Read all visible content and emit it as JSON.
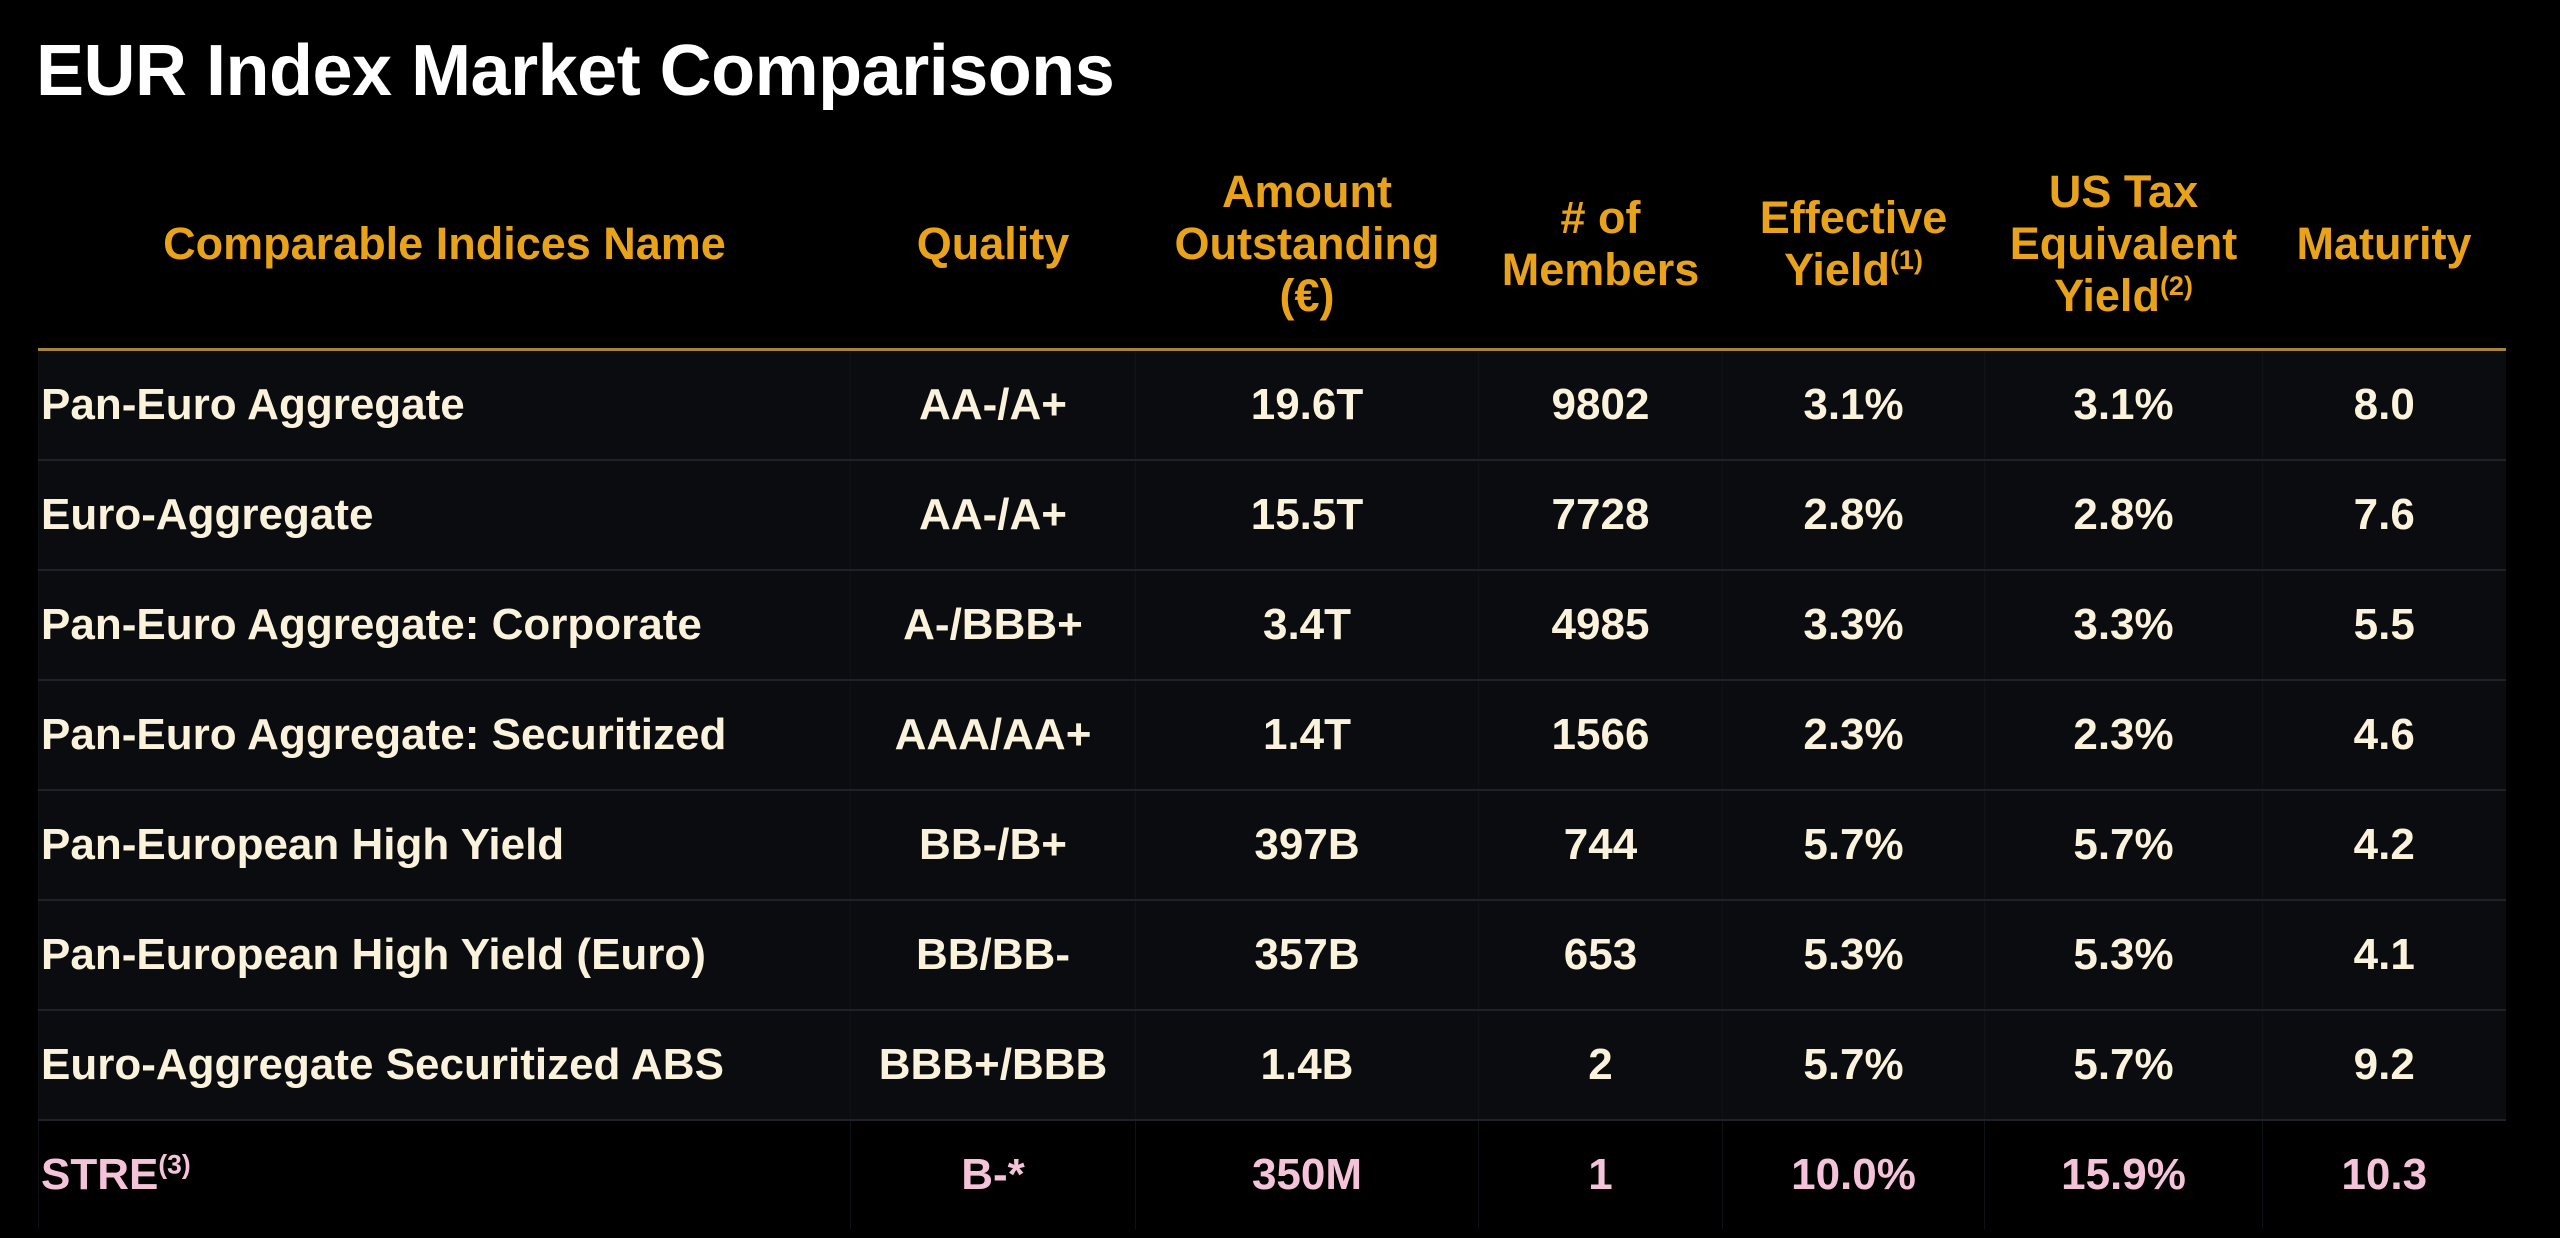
{
  "title": "EUR Index Market Comparisons",
  "colors": {
    "header": "#e9a31b",
    "body_text": "#fbf2dc",
    "highlight_text": "#f5c3d9",
    "background": "#000000"
  },
  "columns": [
    {
      "label": "Comparable Indices Name",
      "sup": ""
    },
    {
      "label": "Quality",
      "sup": ""
    },
    {
      "label": "Amount Outstanding (€)",
      "sup": ""
    },
    {
      "label": "# of Members",
      "sup": ""
    },
    {
      "label": "Effective Yield",
      "sup": "(1)"
    },
    {
      "label": "US Tax Equivalent Yield",
      "sup": "(2)"
    },
    {
      "label": "Maturity",
      "sup": ""
    }
  ],
  "rows": [
    {
      "name": "Pan-Euro Aggregate",
      "sup": "",
      "quality": "AA-/A+",
      "amount": "19.6T",
      "members": "9802",
      "effective_yield": "3.1%",
      "tax_equiv_yield": "3.1%",
      "maturity": "8.0"
    },
    {
      "name": "Euro-Aggregate",
      "sup": "",
      "quality": "AA-/A+",
      "amount": "15.5T",
      "members": "7728",
      "effective_yield": "2.8%",
      "tax_equiv_yield": "2.8%",
      "maturity": "7.6"
    },
    {
      "name": "Pan-Euro Aggregate: Corporate",
      "sup": "",
      "quality": "A-/BBB+",
      "amount": "3.4T",
      "members": "4985",
      "effective_yield": "3.3%",
      "tax_equiv_yield": "3.3%",
      "maturity": "5.5"
    },
    {
      "name": "Pan-Euro Aggregate: Securitized",
      "sup": "",
      "quality": "AAA/AA+",
      "amount": "1.4T",
      "members": "1566",
      "effective_yield": "2.3%",
      "tax_equiv_yield": "2.3%",
      "maturity": "4.6"
    },
    {
      "name": "Pan-European High Yield",
      "sup": "",
      "quality": "BB-/B+",
      "amount": "397B",
      "members": "744",
      "effective_yield": "5.7%",
      "tax_equiv_yield": "5.7%",
      "maturity": "4.2"
    },
    {
      "name": "Pan-European High Yield (Euro)",
      "sup": "",
      "quality": "BB/BB-",
      "amount": "357B",
      "members": "653",
      "effective_yield": "5.3%",
      "tax_equiv_yield": "5.3%",
      "maturity": "4.1"
    },
    {
      "name": "Euro-Aggregate Securitized ABS",
      "sup": "",
      "quality": "BBB+/BBB",
      "amount": "1.4B",
      "members": "2",
      "effective_yield": "5.7%",
      "tax_equiv_yield": "5.7%",
      "maturity": "9.2"
    },
    {
      "name": "STRE",
      "sup": "(3)",
      "quality": "B-*",
      "amount": "350M",
      "members": "1",
      "effective_yield": "10.0%",
      "tax_equiv_yield": "15.9%",
      "maturity": "10.3",
      "highlight": true
    }
  ]
}
